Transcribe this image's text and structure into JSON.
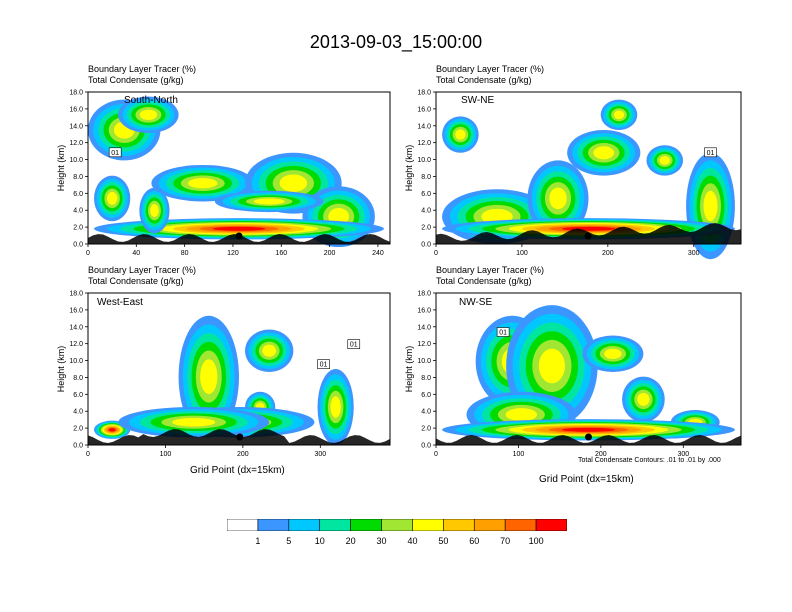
{
  "title": "2013-09-03_15:00:00",
  "chart_data": [
    {
      "type": "heatmap",
      "panel": "South-North",
      "header_line1": "Boundary Layer Tracer   (%)",
      "header_line2": "Total Condensate   (g/kg)",
      "xlabel": "",
      "ylabel": "Height (km)",
      "xlim": [
        0,
        250
      ],
      "ylim": [
        0,
        18
      ],
      "xticks": [
        "0",
        "40",
        "80",
        "120",
        "160",
        "200",
        "240"
      ],
      "xtick_values": [
        0,
        40,
        80,
        120,
        160,
        200,
        240
      ],
      "yticks": [
        "0.0",
        "2.0",
        "4.0",
        "6.0",
        "8.0",
        "10.0",
        "12.0",
        "14.0",
        "16.0",
        "18.0"
      ],
      "contour_labels": [
        "01"
      ],
      "marker_x": 125
    },
    {
      "type": "heatmap",
      "panel": "SW-NE",
      "header_line1": "Boundary Layer Tracer   (%)",
      "header_line2": "Total Condensate   (g/kg)",
      "xlabel": "",
      "ylabel": "Height (km)",
      "xlim": [
        0,
        355
      ],
      "ylim": [
        0,
        18
      ],
      "xticks": [
        "0",
        "100",
        "200",
        "300"
      ],
      "xtick_values": [
        0,
        100,
        200,
        300
      ],
      "yticks": [
        "0.0",
        "2.0",
        "4.0",
        "6.0",
        "8.0",
        "10.0",
        "12.0",
        "14.0",
        "16.0",
        "18.0"
      ],
      "contour_labels": [
        "01"
      ],
      "marker_x": 177
    },
    {
      "type": "heatmap",
      "panel": "West-East",
      "header_line1": "Boundary Layer Tracer   (%)",
      "header_line2": "Total Condensate   (g/kg)",
      "xlabel": "Grid Point (dx=15km)",
      "ylabel": "Height (km)",
      "xlim": [
        0,
        390
      ],
      "ylim": [
        0,
        18
      ],
      "xticks": [
        "0",
        "100",
        "200",
        "300"
      ],
      "xtick_values": [
        0,
        100,
        200,
        300
      ],
      "yticks": [
        "0.0",
        "2.0",
        "4.0",
        "6.0",
        "8.0",
        "10.0",
        "12.0",
        "14.0",
        "16.0",
        "18.0"
      ],
      "contour_labels": [
        "01",
        "01"
      ],
      "marker_x": 196
    },
    {
      "type": "heatmap",
      "panel": "NW-SE",
      "header_line1": "Boundary Layer Tracer   (%)",
      "header_line2": "Total Condensate   (g/kg)",
      "xlabel": "Grid Point (dx=15km)",
      "ylabel": "Height (km)",
      "xlim": [
        0,
        370
      ],
      "ylim": [
        0,
        18
      ],
      "xticks": [
        "0",
        "100",
        "200",
        "300"
      ],
      "xtick_values": [
        0,
        100,
        200,
        300
      ],
      "yticks": [
        "0.0",
        "2.0",
        "4.0",
        "6.0",
        "8.0",
        "10.0",
        "12.0",
        "14.0",
        "16.0",
        "18.0"
      ],
      "contour_labels": [
        "01"
      ],
      "marker_x": 185
    }
  ],
  "contour_note": "Total Condensate Contours: .01 to .01 by .000",
  "colorbar": {
    "labels": [
      "1",
      "5",
      "10",
      "20",
      "30",
      "40",
      "50",
      "60",
      "70",
      "100"
    ],
    "colors": [
      "#ffffff",
      "#3c96ff",
      "#00c8ff",
      "#00e6a0",
      "#00dc00",
      "#a0e632",
      "#ffff00",
      "#ffc800",
      "#ffa000",
      "#ff6400",
      "#ff0000"
    ]
  }
}
